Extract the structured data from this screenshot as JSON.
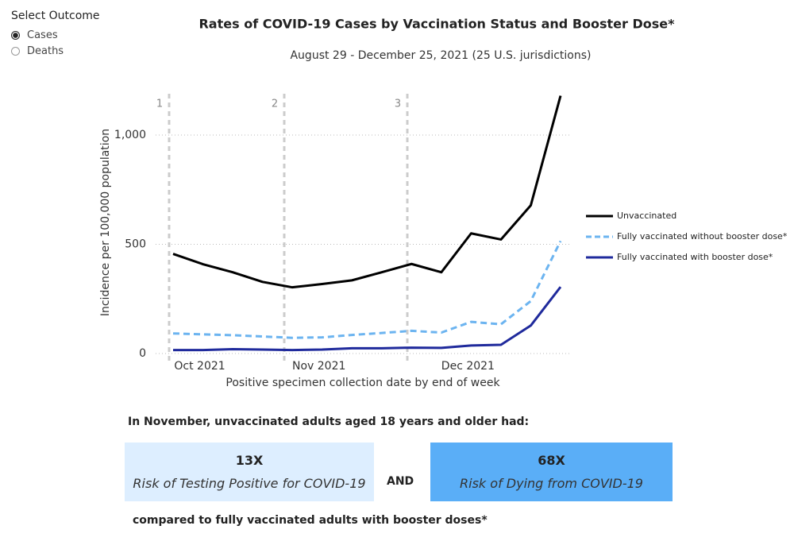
{
  "filter": {
    "title": "Select Outcome",
    "options": [
      "Cases",
      "Deaths"
    ],
    "selected": "Cases"
  },
  "chart_data": {
    "type": "line",
    "title": "Rates of COVID-19 Cases by Vaccination Status and Booster Dose*",
    "subtitle": "August 29 - December 25, 2021 (25 U.S. jurisdictions)",
    "x_label": "Positive specimen collection date by end of week",
    "y_label": "Incidence per 100,000 population",
    "categories": [
      null,
      "Oct 2021",
      null,
      null,
      null,
      "Nov 2021",
      null,
      null,
      null,
      null,
      "Dec 2021",
      null,
      null,
      null
    ],
    "series": [
      {
        "name": "Unvaccinated",
        "color": "#000000",
        "dashed": false,
        "values": [
          456,
          409,
          372,
          328,
          303,
          318,
          335,
          372,
          410,
          372,
          550,
          522,
          678,
          1180
        ]
      },
      {
        "name": "Fully vaccinated without booster dose*",
        "color": "#6cb4f0",
        "dashed": true,
        "values": [
          92,
          88,
          84,
          78,
          72,
          74,
          85,
          94,
          104,
          96,
          145,
          134,
          240,
          515
        ]
      },
      {
        "name": "Fully vaccinated with booster dose*",
        "color": "#1f2a9c",
        "dashed": false,
        "values": [
          16,
          16,
          20,
          18,
          16,
          18,
          24,
          24,
          27,
          26,
          37,
          40,
          128,
          305
        ]
      }
    ],
    "annotations": [
      "1",
      "2",
      "3"
    ],
    "ylim": [
      0,
      1200
    ],
    "yticks": [
      0,
      500,
      {
        "value": 1000,
        "label": "1,000"
      }
    ],
    "grid": true,
    "legend": "right"
  },
  "summary": {
    "headline": "In November, unvaccinated adults aged 18 years and older had:",
    "cases": {
      "value": "13X",
      "label": "Risk of Testing Positive for COVID-19"
    },
    "connector": "AND",
    "deaths": {
      "value": "68X",
      "label": "Risk of Dying from COVID-19"
    },
    "footer": "compared to fully vaccinated adults with booster doses*"
  }
}
